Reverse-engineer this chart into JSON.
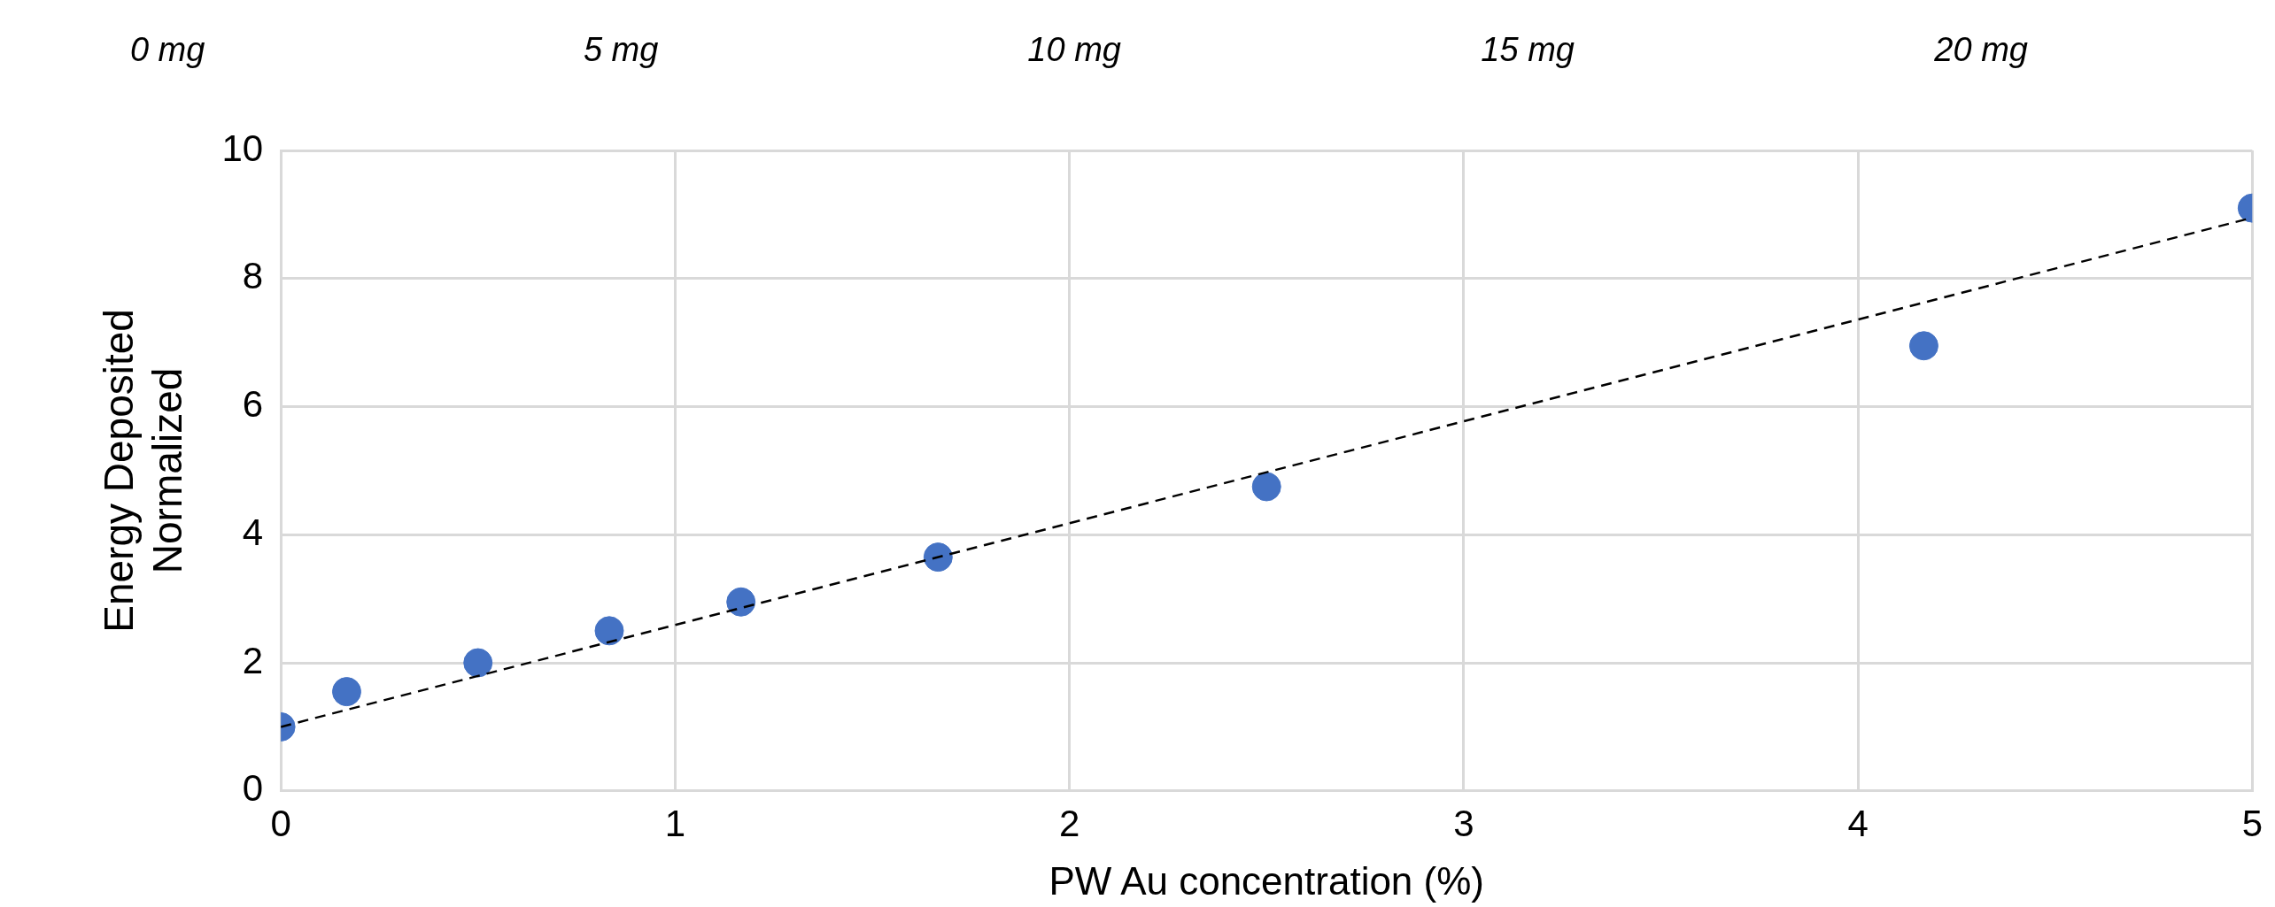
{
  "chart_data": {
    "type": "scatter",
    "xlabel": "PW Au concentration (%)",
    "ylabel": "Energy Deposited Normalized",
    "annotations": [
      "0 mg",
      "5 mg",
      "10 mg",
      "15 mg",
      "20 mg"
    ],
    "series": [
      {
        "color": "#4472c4",
        "x": [
          0,
          0.167,
          0.5,
          0.833,
          1.167,
          1.667,
          2.5,
          4.167,
          5
        ],
        "values": [
          1.0,
          1.55,
          2.0,
          2.5,
          2.95,
          3.65,
          4.75,
          6.95,
          9.1
        ]
      },
      {
        "type": "line",
        "color": "#000000",
        "x": [
          0,
          5
        ],
        "values": [
          1.0,
          8.95
        ],
        "marker": "none",
        "line_style": "dashed"
      }
    ],
    "xlim": [
      0,
      5
    ],
    "xticks": [
      0,
      1,
      2,
      3,
      4,
      5
    ],
    "ylim": [
      0,
      10
    ],
    "yticks": [
      0,
      2,
      4,
      6,
      8,
      10
    ],
    "grid": true,
    "marker": "circle"
  }
}
